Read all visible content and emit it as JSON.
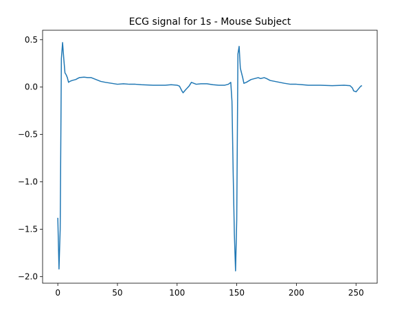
{
  "chart_data": {
    "type": "line",
    "title": "ECG signal for 1s - Mouse Subject",
    "series": [
      {
        "color": "#1f77b4",
        "x": [
          0,
          1,
          2,
          3,
          4,
          5,
          6,
          7,
          8,
          9,
          10,
          12,
          15,
          18,
          22,
          25,
          28,
          32,
          36,
          40,
          45,
          50,
          55,
          60,
          65,
          70,
          80,
          90,
          95,
          100,
          102,
          104,
          105,
          107,
          110,
          112,
          114,
          116,
          120,
          125,
          130,
          135,
          140,
          143,
          145,
          146,
          147,
          148,
          149,
          150,
          151,
          152,
          153,
          154,
          155,
          156,
          158,
          162,
          165,
          168,
          170,
          173,
          175,
          178,
          182,
          186,
          190,
          195,
          200,
          205,
          210,
          220,
          230,
          240,
          245,
          247,
          248,
          250,
          252,
          254,
          255
        ],
        "values": [
          -1.38,
          -1.92,
          -1.5,
          0.3,
          0.47,
          0.3,
          0.15,
          0.13,
          0.1,
          0.05,
          0.06,
          0.07,
          0.08,
          0.1,
          0.105,
          0.1,
          0.1,
          0.08,
          0.06,
          0.05,
          0.04,
          0.03,
          0.035,
          0.03,
          0.03,
          0.025,
          0.02,
          0.02,
          0.025,
          0.02,
          0.01,
          -0.04,
          -0.06,
          -0.03,
          0.01,
          0.05,
          0.04,
          0.03,
          0.035,
          0.035,
          0.025,
          0.02,
          0.02,
          0.03,
          0.05,
          -0.15,
          -0.9,
          -1.55,
          -1.94,
          -1.4,
          0.35,
          0.43,
          0.2,
          0.15,
          0.1,
          0.04,
          0.05,
          0.08,
          0.09,
          0.1,
          0.09,
          0.1,
          0.09,
          0.07,
          0.06,
          0.05,
          0.04,
          0.03,
          0.03,
          0.025,
          0.02,
          0.02,
          0.015,
          0.02,
          0.015,
          -0.01,
          -0.04,
          -0.05,
          -0.02,
          0.01,
          0.015
        ]
      }
    ],
    "xlim": [
      -12.75,
      267.75
    ],
    "xticks": [
      0,
      50,
      100,
      150,
      200,
      250
    ],
    "ylim": [
      -2.07,
      0.6
    ],
    "yticks": [
      {
        "value": -2,
        "label": "−2.0"
      },
      {
        "value": -1.5,
        "label": "−1.5"
      },
      {
        "value": -1,
        "label": "−1.0"
      },
      {
        "value": -0.5,
        "label": "−0.5"
      },
      {
        "value": 0,
        "label": "0.0"
      },
      {
        "value": 0.5,
        "label": "0.5"
      }
    ],
    "grid": false
  }
}
